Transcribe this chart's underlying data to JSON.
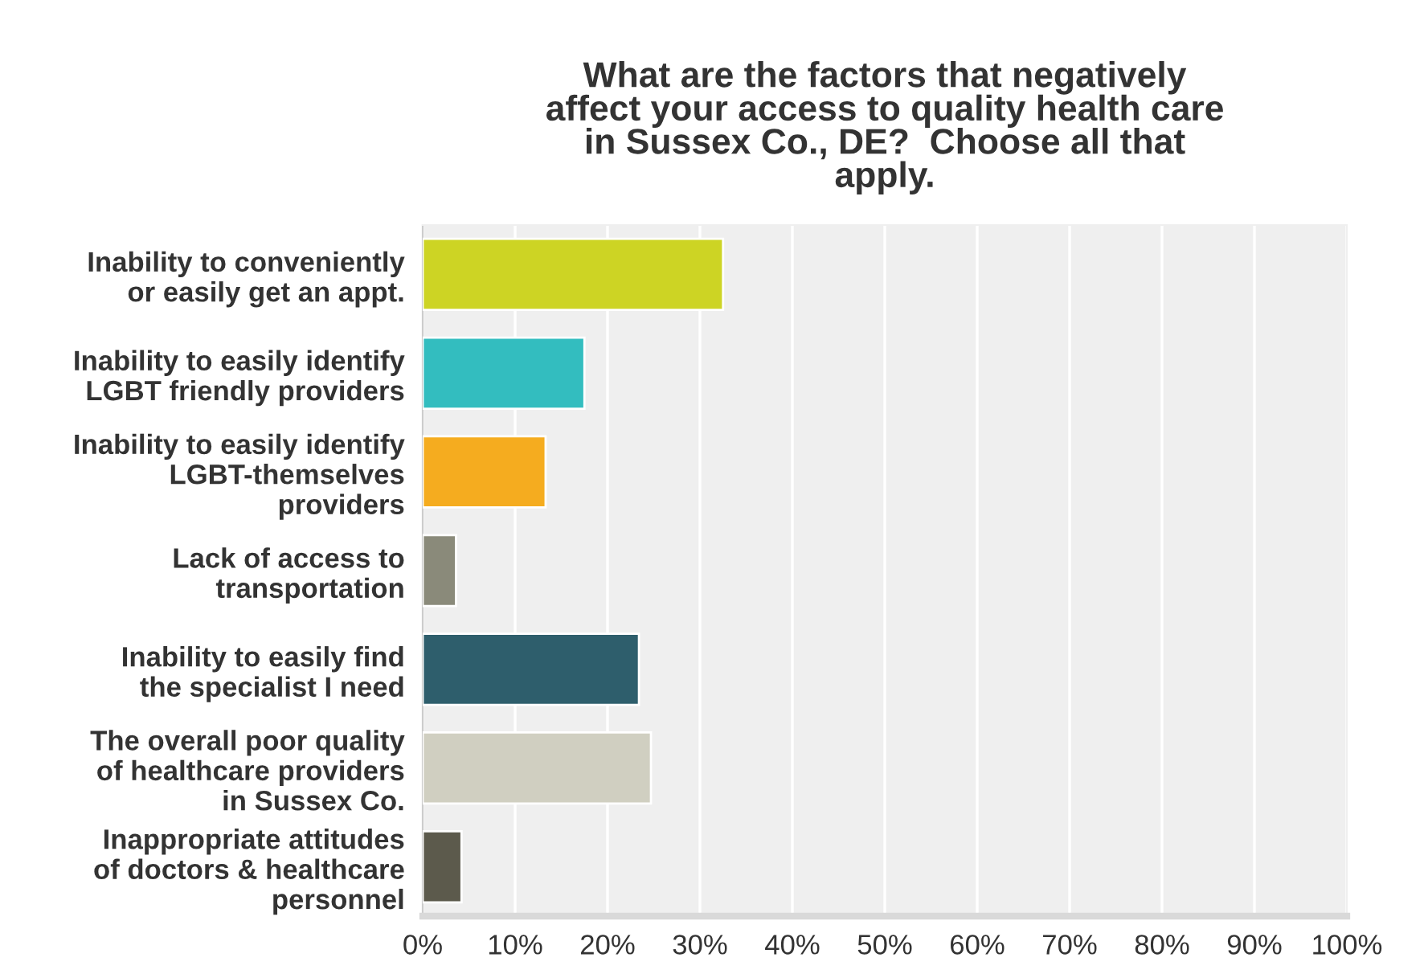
{
  "chart_data": {
    "type": "bar",
    "orientation": "horizontal",
    "title": "What are the factors that negatively\naffect your access to quality health care\nin Sussex Co., DE?  Choose all that\napply.",
    "categories": [
      "Inability to conveniently\nor easily get an appt.",
      "Inability to easily identify\nLGBT friendly providers",
      "Inability to easily identify\nLGBT-themselves\nproviders",
      "Lack of access to\ntransportation",
      "Inability to easily find\nthe specialist I need",
      "The overall poor quality\nof healthcare providers\nin Sussex Co.",
      "Inappropriate attitudes\nof doctors & healthcare\npersonnel"
    ],
    "values": [
      32.5,
      17.5,
      13.3,
      3.6,
      23.4,
      24.7,
      4.2
    ],
    "colors": [
      "#cdd424",
      "#33bdbf",
      "#f5ac1f",
      "#8a8a7a",
      "#2e5e6c",
      "#d0cfc1",
      "#5c5a4c"
    ],
    "xlim": [
      0,
      100
    ],
    "xticks": [
      {
        "value": 0,
        "label": "0%"
      },
      {
        "value": 10,
        "label": "10%"
      },
      {
        "value": 20,
        "label": "20%"
      },
      {
        "value": 30,
        "label": "30%"
      },
      {
        "value": 40,
        "label": "40%"
      },
      {
        "value": 50,
        "label": "50%"
      },
      {
        "value": 60,
        "label": "60%"
      },
      {
        "value": 70,
        "label": "70%"
      },
      {
        "value": 80,
        "label": "80%"
      },
      {
        "value": 90,
        "label": "90%"
      },
      {
        "value": 100,
        "label": "100%"
      }
    ],
    "grid": "x"
  }
}
